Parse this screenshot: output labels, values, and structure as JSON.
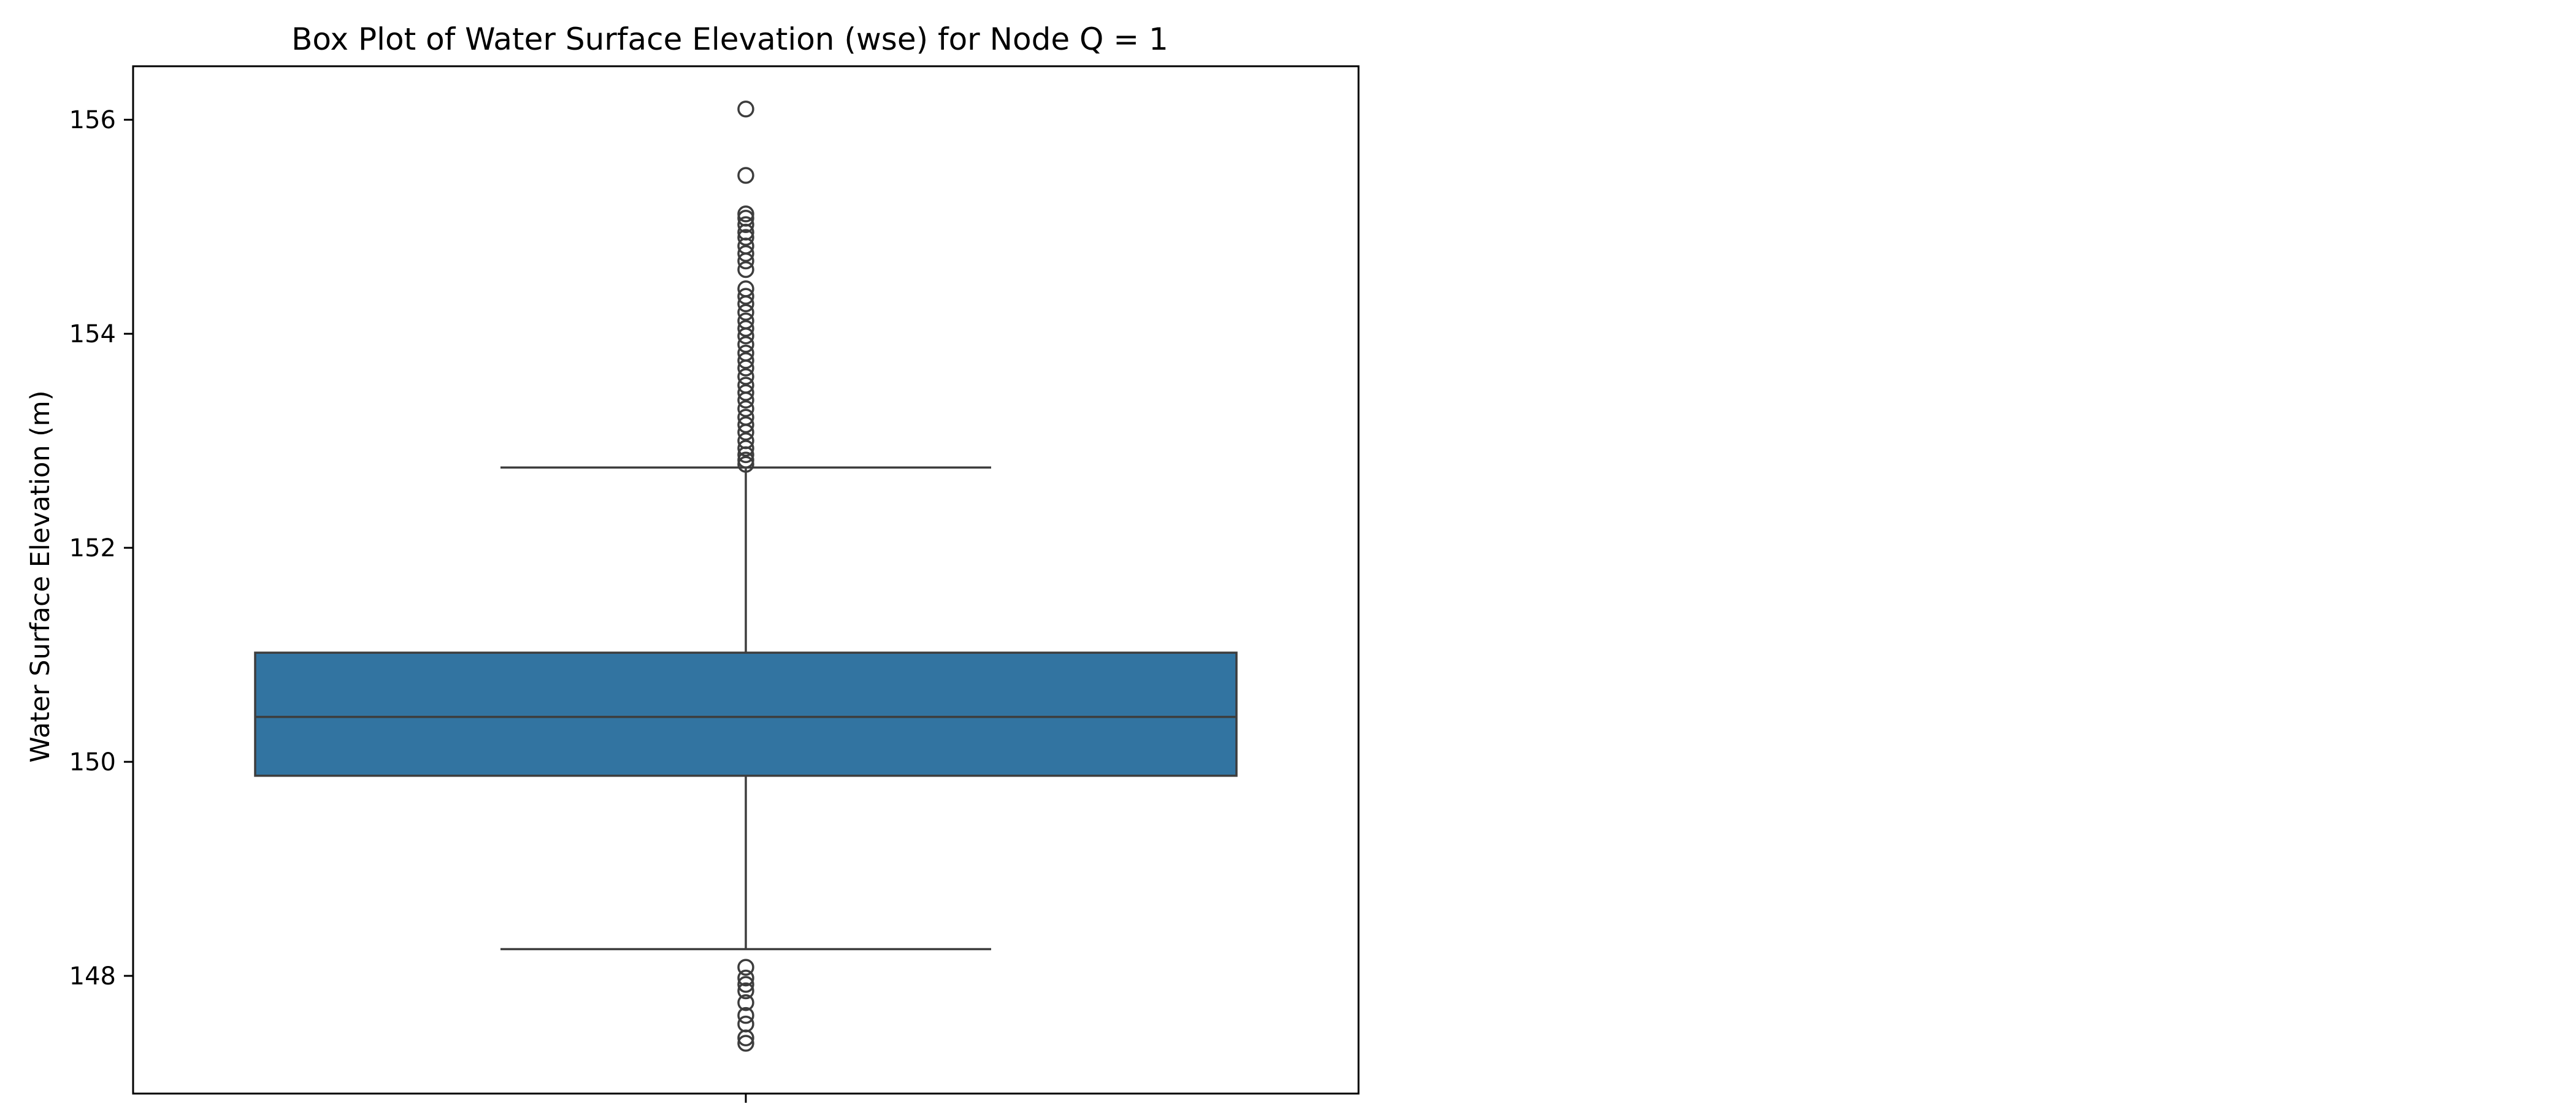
{
  "chart_data": {
    "type": "box",
    "title": "Box Plot of Water Surface Elevation (wse) for Node Q = 1",
    "xlabel": "",
    "ylabel": "Water Surface Elevation (m)",
    "ylim": [
      146.9,
      156.5
    ],
    "yticks": [
      148,
      150,
      152,
      154,
      156
    ],
    "yticklabels": [
      "148",
      "150",
      "152",
      "154",
      "156"
    ],
    "grid": false,
    "box_color": "#3274a1",
    "edge_color": "#3d3d3d",
    "box": {
      "whisker_low": 148.25,
      "q1": 149.87,
      "median": 150.42,
      "q3": 151.02,
      "whisker_high": 152.75
    },
    "outliers": [
      156.1,
      155.48,
      155.12,
      155.08,
      155.02,
      154.95,
      154.9,
      154.82,
      154.75,
      154.68,
      154.6,
      154.42,
      154.35,
      154.28,
      154.2,
      154.12,
      154.05,
      153.98,
      153.9,
      153.82,
      153.75,
      153.68,
      153.6,
      153.52,
      153.45,
      153.38,
      153.3,
      153.22,
      153.15,
      153.08,
      153.0,
      152.93,
      152.87,
      152.82,
      152.78,
      148.08,
      147.98,
      147.92,
      147.86,
      147.75,
      147.63,
      147.55,
      147.42,
      147.37
    ]
  }
}
